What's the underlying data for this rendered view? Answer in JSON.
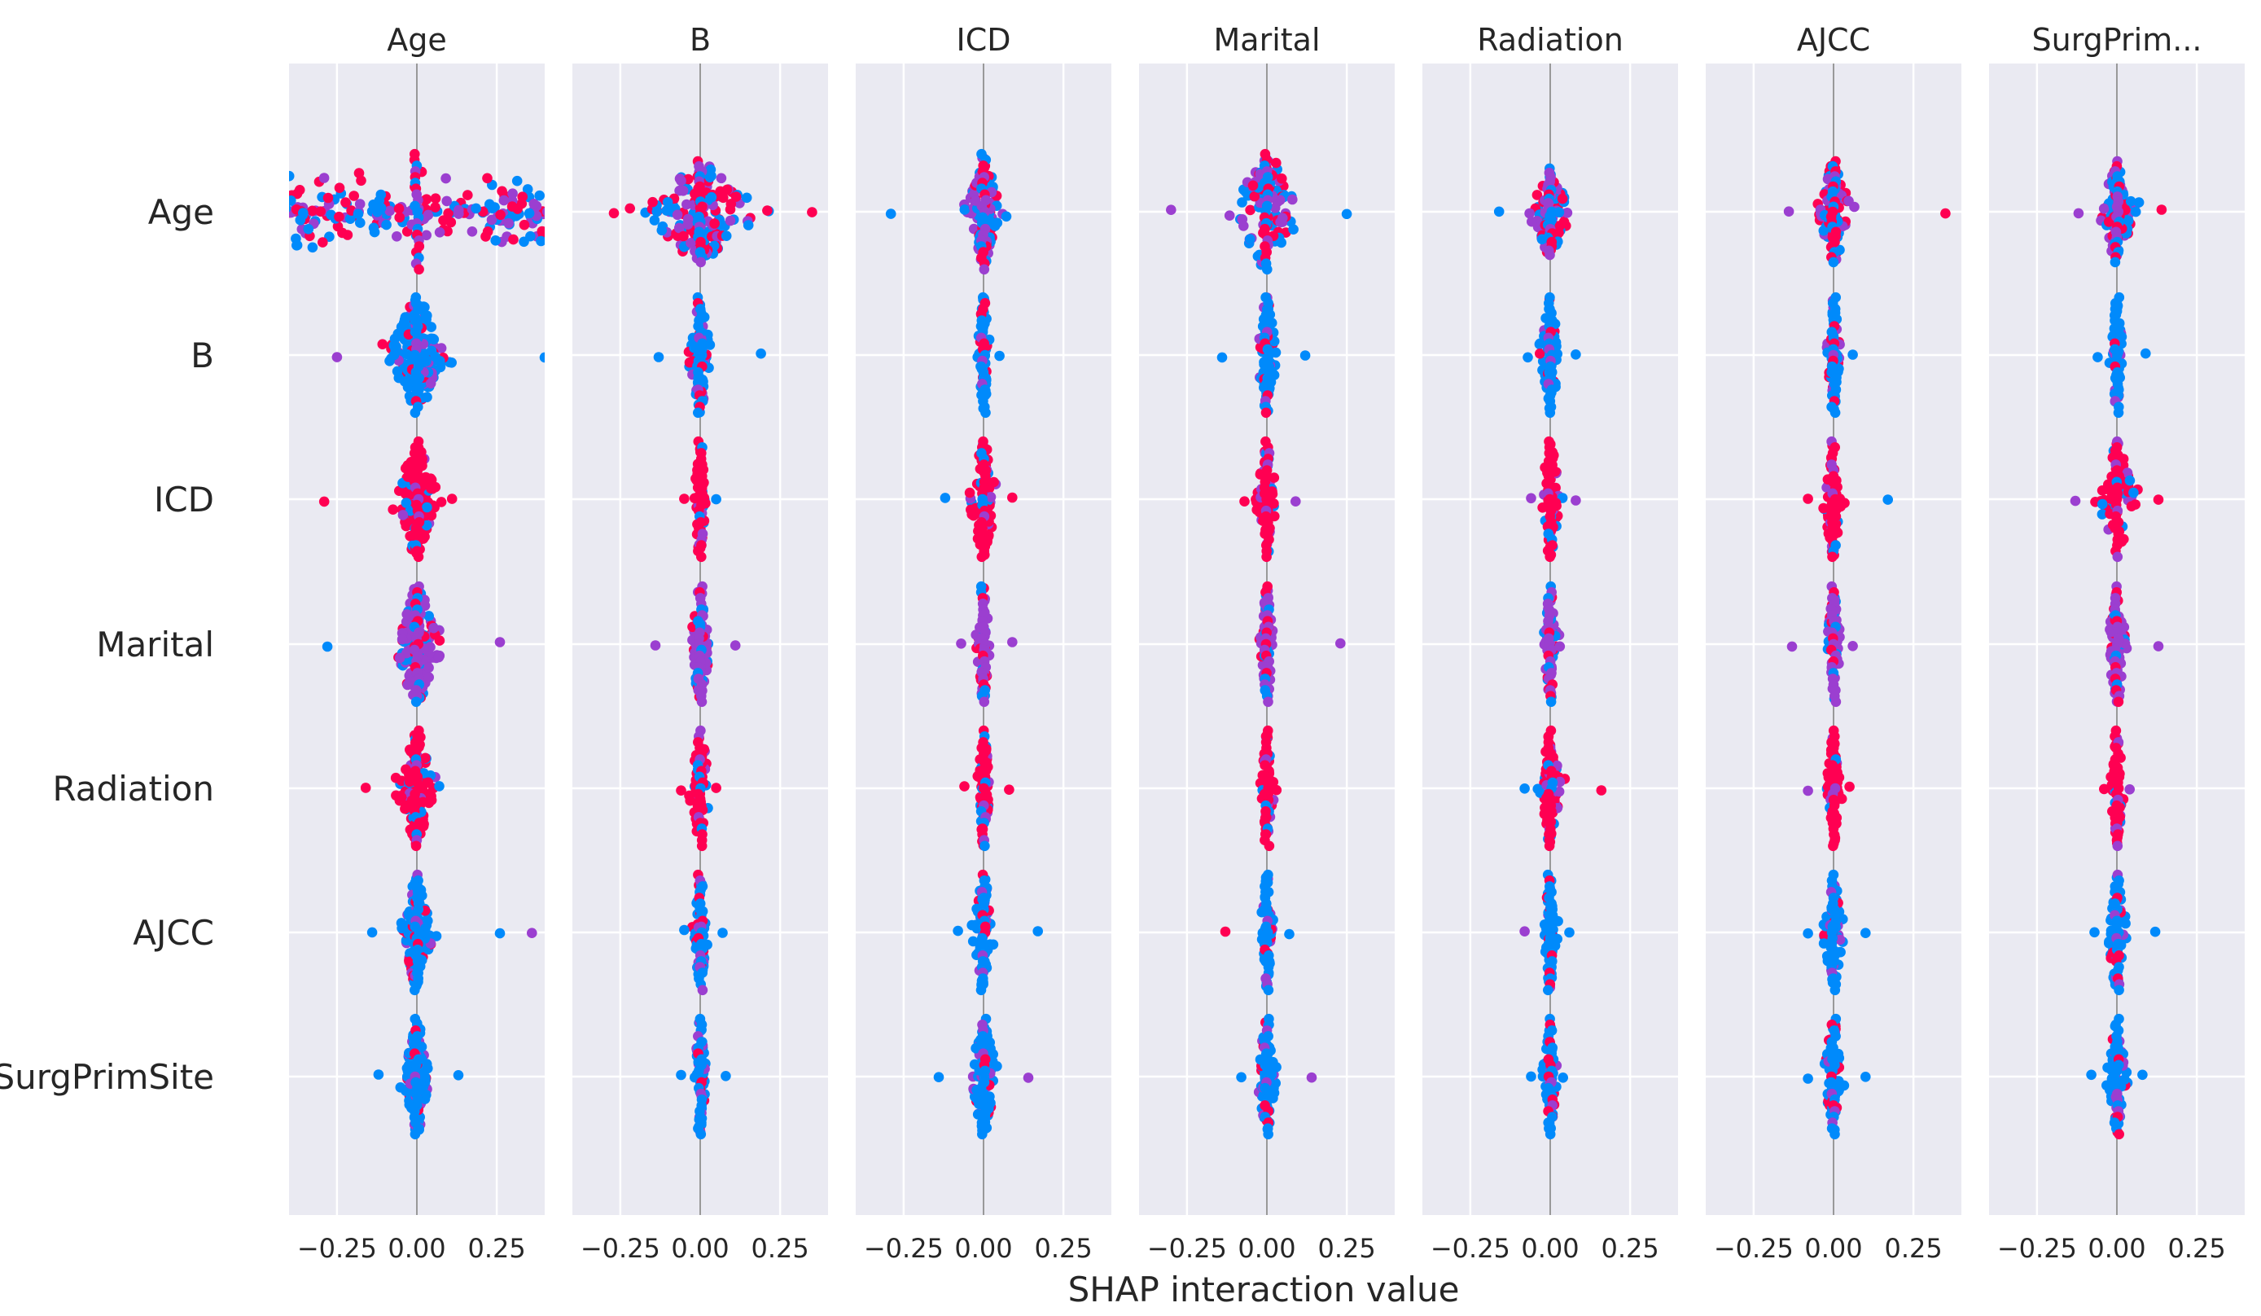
{
  "chart_data": {
    "type": "scatter",
    "title": "",
    "xlabel": "SHAP interaction value",
    "ylabel": "",
    "features": [
      "Age",
      "B",
      "ICD",
      "Marital",
      "Radiation",
      "AJCC",
      "SurgPrimSite"
    ],
    "column_titles": [
      "Age",
      "B",
      "ICD",
      "Marital",
      "Radiation",
      "AJCC",
      "SurgPrim..."
    ],
    "xlim": [
      -0.4,
      0.4
    ],
    "x_ticks": [
      -0.25,
      0.0,
      0.25
    ],
    "x_tick_labels": [
      "−0.25",
      "0.00",
      "0.25"
    ],
    "grid": true,
    "colors": {
      "panel_bg": "#eaeaf2",
      "grid": "#ffffff",
      "zero_line": "#999999",
      "low": "#008afb",
      "mid": "#9b3fd0",
      "high": "#ff0052"
    },
    "cells": [
      [
        {
          "spread": 0.4,
          "height": 0.4,
          "n": 210,
          "mix": "blend",
          "outliers": []
        },
        {
          "spread": 0.16,
          "height": 0.35,
          "n": 150,
          "mix": "blend",
          "outliers": [
            -0.27,
            0.21,
            0.35
          ]
        },
        {
          "spread": 0.05,
          "height": 0.4,
          "n": 90,
          "mix": "mix",
          "outliers": [
            -0.29
          ]
        },
        {
          "spread": 0.1,
          "height": 0.4,
          "n": 90,
          "mix": "mix",
          "outliers": [
            -0.3,
            0.25
          ]
        },
        {
          "spread": 0.06,
          "height": 0.3,
          "n": 80,
          "mix": "mix",
          "outliers": [
            -0.16
          ]
        },
        {
          "spread": 0.05,
          "height": 0.35,
          "n": 80,
          "mix": "mix",
          "outliers": [
            -0.14,
            0.35
          ]
        },
        {
          "spread": 0.05,
          "height": 0.35,
          "n": 80,
          "mix": "mix",
          "outliers": [
            -0.12,
            0.14
          ]
        }
      ],
      [
        {
          "spread": 0.08,
          "height": 0.4,
          "n": 160,
          "mix": "blue",
          "outliers": [
            -0.25,
            0.4
          ]
        },
        {
          "spread": 0.03,
          "height": 0.4,
          "n": 70,
          "mix": "blue",
          "outliers": [
            -0.13,
            0.19
          ]
        },
        {
          "spread": 0.02,
          "height": 0.4,
          "n": 50,
          "mix": "blue",
          "outliers": [
            0.05
          ]
        },
        {
          "spread": 0.03,
          "height": 0.4,
          "n": 60,
          "mix": "blue",
          "outliers": [
            -0.14,
            0.12
          ]
        },
        {
          "spread": 0.03,
          "height": 0.4,
          "n": 60,
          "mix": "blue",
          "outliers": [
            -0.07,
            0.08
          ]
        },
        {
          "spread": 0.02,
          "height": 0.4,
          "n": 50,
          "mix": "blue",
          "outliers": [
            0.06
          ]
        },
        {
          "spread": 0.02,
          "height": 0.4,
          "n": 50,
          "mix": "blue",
          "outliers": [
            -0.06,
            0.09
          ]
        }
      ],
      [
        {
          "spread": 0.06,
          "height": 0.4,
          "n": 130,
          "mix": "red",
          "outliers": [
            -0.29,
            0.11
          ]
        },
        {
          "spread": 0.02,
          "height": 0.4,
          "n": 50,
          "mix": "red",
          "outliers": [
            -0.05,
            0.05
          ]
        },
        {
          "spread": 0.04,
          "height": 0.4,
          "n": 70,
          "mix": "red",
          "outliers": [
            -0.12,
            0.09
          ]
        },
        {
          "spread": 0.03,
          "height": 0.4,
          "n": 60,
          "mix": "red",
          "outliers": [
            -0.07,
            0.09
          ]
        },
        {
          "spread": 0.03,
          "height": 0.4,
          "n": 60,
          "mix": "red",
          "outliers": [
            -0.06,
            0.08
          ]
        },
        {
          "spread": 0.03,
          "height": 0.4,
          "n": 60,
          "mix": "red",
          "outliers": [
            -0.08,
            0.17
          ]
        },
        {
          "spread": 0.05,
          "height": 0.4,
          "n": 70,
          "mix": "red",
          "outliers": [
            -0.13,
            0.13
          ]
        }
      ],
      [
        {
          "spread": 0.07,
          "height": 0.4,
          "n": 130,
          "mix": "purple",
          "outliers": [
            -0.28,
            0.26
          ]
        },
        {
          "spread": 0.03,
          "height": 0.4,
          "n": 60,
          "mix": "purple",
          "outliers": [
            -0.14,
            0.11
          ]
        },
        {
          "spread": 0.02,
          "height": 0.4,
          "n": 50,
          "mix": "purple",
          "outliers": [
            -0.07,
            0.09
          ]
        },
        {
          "spread": 0.02,
          "height": 0.4,
          "n": 60,
          "mix": "purple",
          "outliers": [
            0.23
          ]
        },
        {
          "spread": 0.02,
          "height": 0.4,
          "n": 50,
          "mix": "purple",
          "outliers": [
            0.03
          ]
        },
        {
          "spread": 0.02,
          "height": 0.4,
          "n": 50,
          "mix": "purple",
          "outliers": [
            -0.13,
            0.06
          ]
        },
        {
          "spread": 0.03,
          "height": 0.4,
          "n": 60,
          "mix": "purple",
          "outliers": [
            0.13
          ]
        }
      ],
      [
        {
          "spread": 0.05,
          "height": 0.4,
          "n": 110,
          "mix": "red",
          "outliers": [
            -0.16,
            0.07
          ]
        },
        {
          "spread": 0.03,
          "height": 0.4,
          "n": 60,
          "mix": "red",
          "outliers": [
            -0.06,
            0.05
          ]
        },
        {
          "spread": 0.02,
          "height": 0.4,
          "n": 50,
          "mix": "red",
          "outliers": [
            -0.06,
            0.08
          ]
        },
        {
          "spread": 0.02,
          "height": 0.4,
          "n": 50,
          "mix": "red",
          "outliers": [
            0.03
          ]
        },
        {
          "spread": 0.03,
          "height": 0.4,
          "n": 70,
          "mix": "red",
          "outliers": [
            -0.08,
            0.16
          ]
        },
        {
          "spread": 0.02,
          "height": 0.4,
          "n": 50,
          "mix": "red",
          "outliers": [
            -0.08,
            0.05
          ]
        },
        {
          "spread": 0.02,
          "height": 0.4,
          "n": 50,
          "mix": "red",
          "outliers": [
            -0.04,
            0.04
          ]
        }
      ],
      [
        {
          "spread": 0.04,
          "height": 0.4,
          "n": 120,
          "mix": "blue",
          "outliers": [
            -0.14,
            0.26,
            0.36
          ]
        },
        {
          "spread": 0.02,
          "height": 0.4,
          "n": 50,
          "mix": "blue",
          "outliers": [
            -0.05,
            0.07
          ]
        },
        {
          "spread": 0.03,
          "height": 0.4,
          "n": 60,
          "mix": "blue",
          "outliers": [
            -0.08,
            0.17
          ]
        },
        {
          "spread": 0.02,
          "height": 0.4,
          "n": 50,
          "mix": "blue",
          "outliers": [
            -0.13,
            0.07
          ]
        },
        {
          "spread": 0.02,
          "height": 0.4,
          "n": 50,
          "mix": "blue",
          "outliers": [
            -0.08,
            0.06
          ]
        },
        {
          "spread": 0.03,
          "height": 0.4,
          "n": 60,
          "mix": "blue",
          "outliers": [
            -0.08,
            0.1
          ]
        },
        {
          "spread": 0.03,
          "height": 0.4,
          "n": 60,
          "mix": "blue",
          "outliers": [
            -0.07,
            0.12
          ]
        }
      ],
      [
        {
          "spread": 0.04,
          "height": 0.4,
          "n": 110,
          "mix": "blue",
          "outliers": [
            -0.12,
            0.13
          ]
        },
        {
          "spread": 0.02,
          "height": 0.4,
          "n": 50,
          "mix": "blue",
          "outliers": [
            -0.06,
            0.08
          ]
        },
        {
          "spread": 0.04,
          "height": 0.4,
          "n": 70,
          "mix": "blue",
          "outliers": [
            -0.14,
            0.14
          ]
        },
        {
          "spread": 0.03,
          "height": 0.4,
          "n": 60,
          "mix": "blue",
          "outliers": [
            -0.08,
            0.14
          ]
        },
        {
          "spread": 0.02,
          "height": 0.4,
          "n": 50,
          "mix": "blue",
          "outliers": [
            -0.06,
            0.04
          ]
        },
        {
          "spread": 0.03,
          "height": 0.4,
          "n": 60,
          "mix": "blue",
          "outliers": [
            -0.08,
            0.1
          ]
        },
        {
          "spread": 0.03,
          "height": 0.4,
          "n": 60,
          "mix": "blue",
          "outliers": [
            -0.08,
            0.08
          ]
        }
      ]
    ]
  }
}
